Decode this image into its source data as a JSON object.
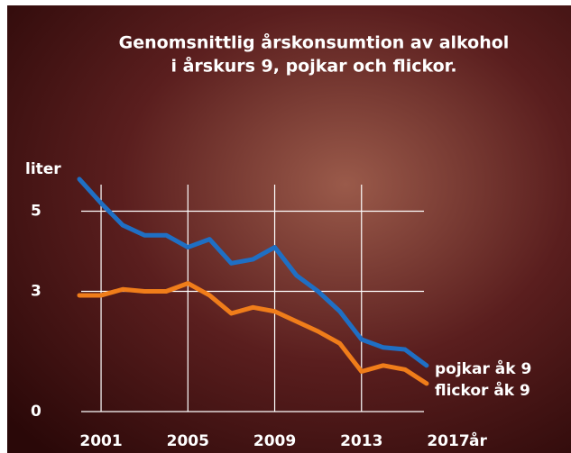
{
  "chart_data": {
    "type": "line",
    "title": "Genomsnittlig årskonsumtion av alkohol",
    "subtitle": "i årskurs 9, pojkar och flickor.",
    "ylabel": "liter",
    "xlabel": "år",
    "x": [
      2000,
      2001,
      2002,
      2003,
      2004,
      2005,
      2006,
      2007,
      2008,
      2009,
      2010,
      2011,
      2012,
      2013,
      2014,
      2015,
      2016
    ],
    "series": [
      {
        "name": "pojkar åk 9",
        "color": "#1f6fc4",
        "values": [
          5.8,
          5.2,
          4.65,
          4.4,
          4.4,
          4.1,
          4.3,
          3.7,
          3.8,
          4.1,
          3.4,
          3.0,
          2.5,
          1.8,
          1.6,
          1.55,
          1.15
        ]
      },
      {
        "name": "flickor åk 9",
        "color": "#f07d1a",
        "values": [
          2.9,
          2.9,
          3.05,
          3.0,
          3.0,
          3.2,
          2.9,
          2.45,
          2.6,
          2.5,
          2.25,
          2.0,
          1.7,
          1.0,
          1.15,
          1.05,
          0.7
        ]
      }
    ],
    "xlim": [
      2000,
      2017
    ],
    "xticks": [
      2001,
      2005,
      2009,
      2013,
      2017
    ],
    "ylim": [
      0,
      6
    ],
    "yticks": [
      0,
      3,
      5
    ],
    "grid": true
  }
}
